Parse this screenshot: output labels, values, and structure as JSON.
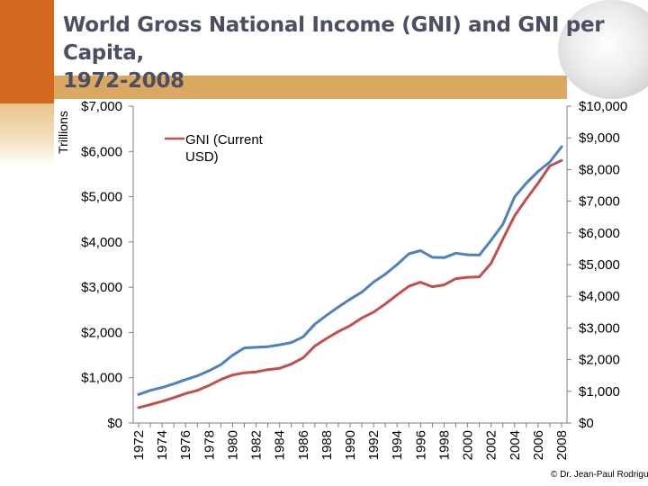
{
  "title_line1": "World Gross National Income (GNI) and GNI per Capita,",
  "title_line2": "1972-2008",
  "unit_label": "Trillions",
  "credit": "© Dr. Jean-Paul Rodrigue",
  "colors": {
    "gni": "#c0504d",
    "gni_per_capita": "#4f81bd",
    "accent": "#d2691e",
    "title": "#4a4f63"
  },
  "chart_data": {
    "type": "line",
    "title": "World Gross National Income (GNI) and GNI per Capita, 1972-2008",
    "xlabel": "",
    "ylabel": "Trillions",
    "x": [
      1972,
      1973,
      1974,
      1975,
      1976,
      1977,
      1978,
      1979,
      1980,
      1981,
      1982,
      1983,
      1984,
      1985,
      1986,
      1987,
      1988,
      1989,
      1990,
      1991,
      1992,
      1993,
      1994,
      1995,
      1996,
      1997,
      1998,
      1999,
      2000,
      2001,
      2002,
      2003,
      2004,
      2005,
      2006,
      2007,
      2008
    ],
    "x_tick_labels": [
      "1972",
      "1974",
      "1976",
      "1978",
      "1980",
      "1982",
      "1984",
      "1986",
      "1988",
      "1990",
      "1992",
      "1994",
      "1996",
      "1998",
      "2000",
      "2002",
      "2004",
      "2006",
      "2008"
    ],
    "left_axis": {
      "ylim": [
        0,
        7000
      ],
      "ticks": [
        "$0",
        "$1,000",
        "$2,000",
        "$3,000",
        "$4,000",
        "$5,000",
        "$6,000",
        "$7,000"
      ]
    },
    "right_axis": {
      "ylim": [
        0,
        10000
      ],
      "ticks": [
        "$0",
        "$1,000",
        "$2,000",
        "$3,000",
        "$4,000",
        "$5,000",
        "$6,000",
        "$7,000",
        "$8,000",
        "$9,000",
        "$10,000"
      ]
    },
    "legend": [
      "GNI (Current",
      "USD)"
    ],
    "series": [
      {
        "name": "GNI (Current USD)",
        "axis": "left",
        "values": [
          340,
          405,
          480,
          560,
          650,
          720,
          830,
          960,
          1060,
          1110,
          1130,
          1180,
          1210,
          1300,
          1440,
          1700,
          1870,
          2020,
          2150,
          2320,
          2450,
          2630,
          2830,
          3020,
          3110,
          3010,
          3050,
          3190,
          3220,
          3230,
          3530,
          4060,
          4580,
          4950,
          5300,
          5680,
          5800
        ]
      },
      {
        "name": "GNI per capita",
        "axis": "right",
        "values": [
          900,
          1030,
          1120,
          1240,
          1370,
          1490,
          1650,
          1840,
          2140,
          2370,
          2390,
          2410,
          2470,
          2540,
          2720,
          3120,
          3400,
          3660,
          3910,
          4130,
          4450,
          4700,
          5000,
          5340,
          5440,
          5230,
          5220,
          5360,
          5310,
          5300,
          5770,
          6270,
          7140,
          7570,
          7940,
          8240,
          8720
        ]
      }
    ]
  }
}
